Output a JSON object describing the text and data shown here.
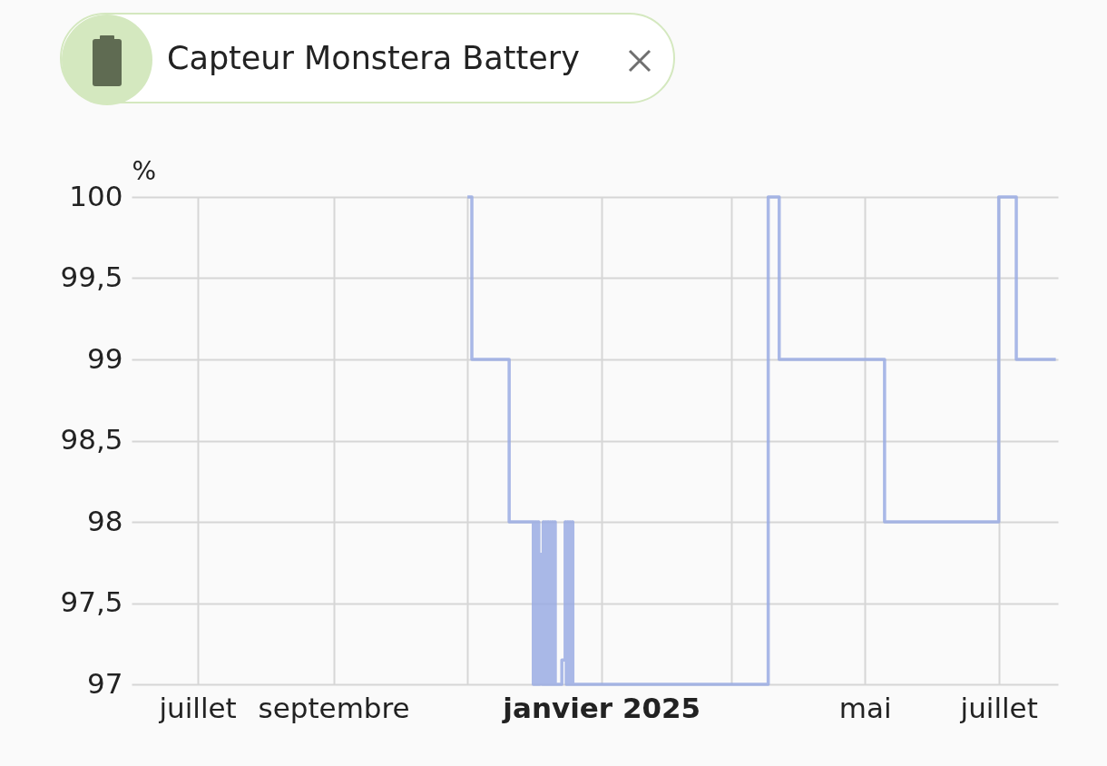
{
  "chart_data": {
    "type": "step",
    "title": "Capteur Monstera Battery",
    "ylabel": "%",
    "x": [
      "2024-11-01",
      "2024-11-03",
      "2024-11-20",
      "2024-12-01",
      "2024-12-01T08:00",
      "2024-12-01T16:00",
      "2024-12-02",
      "2024-12-02T12:00",
      "2024-12-03",
      "2024-12-03T12:00",
      "2024-12-04",
      "2024-12-05",
      "2024-12-05T12:00",
      "2024-12-06",
      "2024-12-06T12:00",
      "2024-12-07",
      "2024-12-07T12:00",
      "2024-12-08",
      "2024-12-08T12:00",
      "2024-12-09",
      "2024-12-09T12:00",
      "2024-12-10",
      "2024-12-10T12:00",
      "2024-12-11",
      "2024-12-14",
      "2024-12-15T12:00",
      "2024-12-16",
      "2024-12-16T12:00",
      "2024-12-17",
      "2024-12-17T12:00",
      "2024-12-18",
      "2024-12-18T12:00",
      "2024-12-19",
      "2025-03-18",
      "2025-03-23",
      "2025-05-10",
      "2025-07-01",
      "2025-07-09",
      "2025-07-27"
    ],
    "series": [
      {
        "color": "#9aace3",
        "values": [
          100,
          99,
          98,
          97,
          98,
          97,
          98,
          97,
          98,
          97,
          97.8,
          97,
          98,
          97,
          98,
          97,
          98,
          97,
          98,
          97,
          98,
          97,
          98,
          97,
          97.15,
          98,
          97,
          98,
          97,
          98,
          97,
          98,
          97,
          100,
          99,
          98,
          100,
          99,
          99
        ]
      }
    ],
    "xlim": [
      "2024-06-01",
      "2025-07-28"
    ],
    "xticks": [
      {
        "value": "2024-07-01",
        "label": "juillet"
      },
      {
        "value": "2024-09-01",
        "label": "septembre"
      },
      {
        "value": "2024-11-01",
        "label": null
      },
      {
        "value": "2025-01-01",
        "label": "janvier 2025"
      },
      {
        "value": "2025-03-01",
        "label": null
      },
      {
        "value": "2025-05-01",
        "label": "mai"
      },
      {
        "value": "2025-07-01",
        "label": "juillet"
      }
    ],
    "ylim": [
      97,
      100
    ],
    "yticks": [
      97,
      {
        "value": 97.5,
        "label": "97,5"
      },
      98,
      {
        "value": 98.5,
        "label": "98,5"
      },
      99,
      {
        "value": 99.5,
        "label": "99,5"
      },
      100
    ],
    "grid": true,
    "marker": "none",
    "line_style": "solid"
  }
}
